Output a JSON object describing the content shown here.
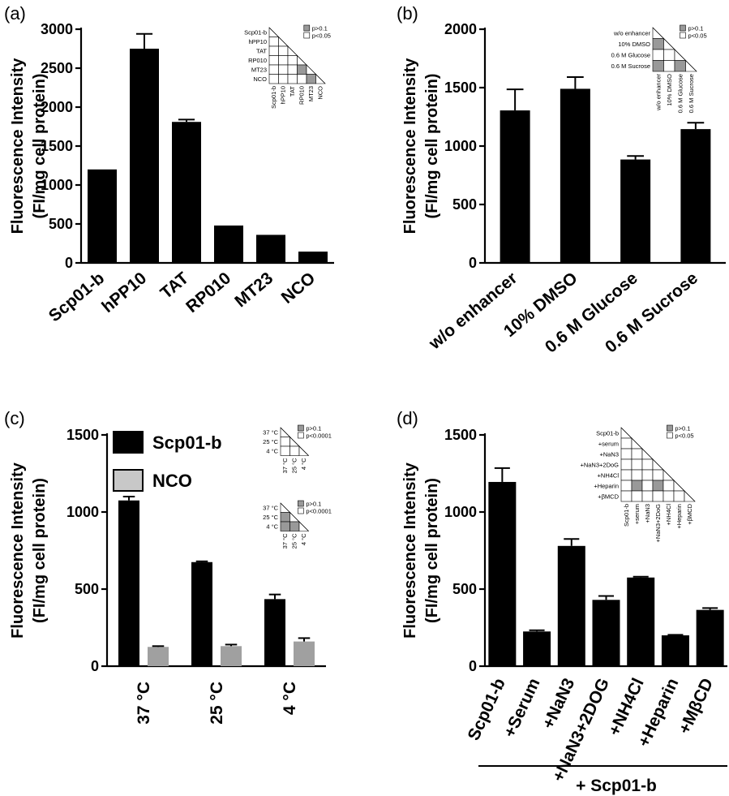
{
  "panels": [
    {
      "id": "a",
      "label": "(a)",
      "ylabel": [
        "Fluorescence Intensity",
        "(FI/mg cell protein)"
      ],
      "ylim": [
        0,
        3000
      ],
      "ticks": [
        0,
        500,
        1000,
        1500,
        2000,
        2500,
        3000
      ],
      "chart_data": {
        "type": "bar",
        "categories": [
          "Scp01-b",
          "hPP10",
          "TAT",
          "RP010",
          "MT23",
          "NCO"
        ],
        "values": [
          1200,
          2750,
          1810,
          480,
          360,
          145
        ],
        "errors": [
          0,
          190,
          30,
          0,
          0,
          0
        ]
      },
      "inset": [
        {
          "labels": [
            "Scp01-b",
            "hPP10",
            "TAT",
            "RP010",
            "MT23",
            "NCO"
          ],
          "legend": [
            "p>0.1",
            "p<0.05"
          ],
          "gray": [
            [
              4,
              3
            ],
            [
              5,
              4
            ]
          ]
        }
      ]
    },
    {
      "id": "b",
      "label": "(b)",
      "ylabel": [
        "Fluorescence Intensity",
        "(FI/mg cell protein)"
      ],
      "ylim": [
        0,
        2000
      ],
      "ticks": [
        0,
        500,
        1000,
        1500,
        2000
      ],
      "chart_data": {
        "type": "bar",
        "categories": [
          "w/o enhancer",
          "10% DMSO",
          "0.6 M Glucose",
          "0.6 M Sucrose"
        ],
        "values": [
          1305,
          1490,
          885,
          1145
        ],
        "errors": [
          180,
          100,
          30,
          55
        ]
      },
      "inset": [
        {
          "labels": [
            "w/o enhancer",
            "10% DMSO",
            "0.6 M Glucose",
            "0.6 M Sucrose"
          ],
          "legend": [
            "p>0.1",
            "p<0.05"
          ],
          "gray": [
            [
              1,
              0
            ],
            [
              3,
              0
            ],
            [
              3,
              2
            ]
          ]
        }
      ]
    },
    {
      "id": "c",
      "label": "(c)",
      "ylabel": [
        "Fluorescence Intensity",
        "(FI/mg cell protein)"
      ],
      "ylim": [
        0,
        1500
      ],
      "ticks": [
        0,
        500,
        1000,
        1500
      ],
      "chart_data": {
        "type": "bar",
        "categories": [
          "37 °C",
          "25 °C",
          "4 °C"
        ],
        "series": [
          {
            "name": "Scp01-b",
            "values": [
              1075,
              675,
              435
            ],
            "errors": [
              25,
              5,
              30
            ],
            "color": "#000000"
          },
          {
            "name": "NCO",
            "values": [
              125,
              130,
              160
            ],
            "errors": [
              5,
              10,
              22
            ],
            "color": "#a0a0a0"
          }
        ]
      },
      "legend": [
        {
          "name": "Scp01-b",
          "color": "#000000"
        },
        {
          "name": "NCO",
          "color": "#c8c8c8"
        }
      ],
      "inset": [
        {
          "labels": [
            "37 °C",
            "25 °C",
            "4 °C"
          ],
          "legend": [
            "p>0.1",
            "p<0.0001"
          ],
          "gray": []
        },
        {
          "labels": [
            "37 °C",
            "25 °C",
            "4 °C"
          ],
          "legend": [
            "p>0.1",
            "p<0.0001"
          ],
          "gray": [
            [
              1,
              0
            ],
            [
              2,
              0
            ],
            [
              2,
              1
            ]
          ]
        }
      ]
    },
    {
      "id": "d",
      "label": "(d)",
      "ylabel": [
        "Fluorescence Intensity",
        "(FI/mg cell protein)"
      ],
      "ylim": [
        0,
        1500
      ],
      "ticks": [
        0,
        500,
        1000,
        1500
      ],
      "chart_data": {
        "type": "bar",
        "categories": [
          "Scp01-b",
          "+Serum",
          "+NaN3",
          "+NaN3+2DOG",
          "+NH4Cl",
          "+Heparin",
          "+MβCD"
        ],
        "values": [
          1195,
          225,
          780,
          430,
          575,
          200,
          365
        ],
        "errors": [
          90,
          8,
          45,
          25,
          5,
          3,
          12
        ]
      },
      "group_label": "+ Scp01-b",
      "inset": [
        {
          "labels": [
            "Scp01-b",
            "+serum",
            "+NaN3",
            "+NaN3+2DoG",
            "+NH4Cl",
            "+Heparin",
            "+βMCD"
          ],
          "legend": [
            "p>0.1",
            "p<0.05"
          ],
          "gray": [
            [
              5,
              1
            ],
            [
              5,
              3
            ]
          ]
        }
      ]
    }
  ]
}
